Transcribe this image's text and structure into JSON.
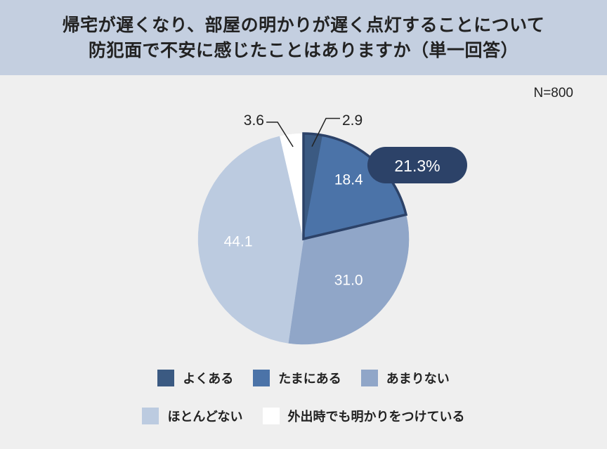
{
  "title": {
    "line1": "帰宅が遅くなり、部屋の明かりが遅く点灯することについて",
    "line2": "防犯面で不安に感じたことはありますか（単一回答）"
  },
  "sample_size": "N=800",
  "chart_data": {
    "type": "pie",
    "title": "帰宅が遅くなり、部屋の明かりが遅く点灯することについて 防犯面で不安に感じたことはありますか（単一回答）",
    "slices": [
      {
        "label": "よくある",
        "value": 2.9,
        "value_label": "2.9",
        "color": "#3b5a82"
      },
      {
        "label": "たまにある",
        "value": 18.4,
        "value_label": "18.4",
        "color": "#4b73a8"
      },
      {
        "label": "あまりない",
        "value": 31.0,
        "value_label": "31.0",
        "color": "#90a6c8"
      },
      {
        "label": "ほとんどない",
        "value": 44.1,
        "value_label": "44.1",
        "color": "#bccbe0"
      },
      {
        "label": "外出時でも明かりをつけている",
        "value": 3.6,
        "value_label": "3.6",
        "color": "#ffffff"
      }
    ],
    "highlight": {
      "label": "21.3%",
      "value": 21.3,
      "includes": [
        "よくある",
        "たまにある"
      ],
      "border_color": "#2c4268"
    },
    "legend_position": "bottom"
  }
}
